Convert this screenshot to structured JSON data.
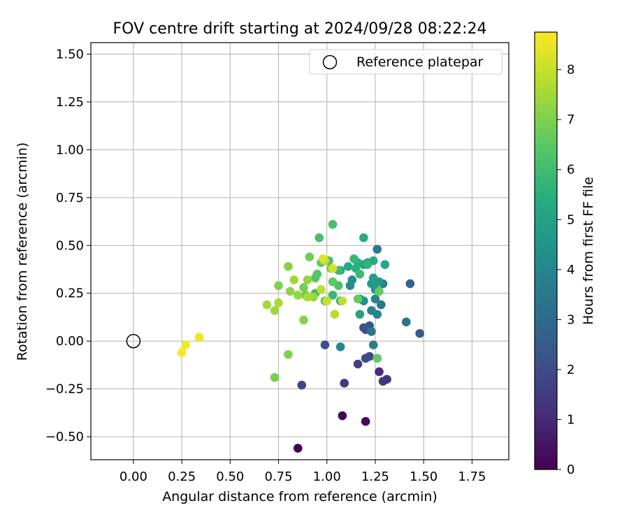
{
  "chart_data": {
    "type": "scatter",
    "title": "FOV centre drift starting at 2024/09/28 08:22:24",
    "xlabel": "Angular distance from reference (arcmin)",
    "ylabel": "Rotation from reference (arcmin)",
    "xlim": [
      -0.22,
      1.94
    ],
    "ylim": [
      -0.62,
      1.56
    ],
    "xticks": [
      "0.00",
      "0.25",
      "0.50",
      "0.75",
      "1.00",
      "1.25",
      "1.50",
      "1.75"
    ],
    "yticks": [
      "−0.50",
      "−0.25",
      "0.00",
      "0.25",
      "0.50",
      "0.75",
      "1.00",
      "1.25",
      "1.50"
    ],
    "grid": true,
    "legend": {
      "placement": "top-right",
      "entries": [
        "Reference platepar"
      ]
    },
    "reference_point": {
      "name": "Reference platepar",
      "x": 0.0,
      "y": 0.0
    },
    "colorbar": {
      "label": "Hours from first FF file",
      "colormap": "viridis",
      "range": [
        0,
        8.75
      ],
      "ticks": [
        "0",
        "1",
        "2",
        "3",
        "4",
        "5",
        "6",
        "7",
        "8"
      ]
    },
    "points": [
      {
        "x": 0.85,
        "y": -0.56,
        "h": 0.0
      },
      {
        "x": 1.08,
        "y": -0.39,
        "h": 0.1
      },
      {
        "x": 1.2,
        "y": -0.42,
        "h": 0.2
      },
      {
        "x": 1.27,
        "y": -0.16,
        "h": 1.1
      },
      {
        "x": 1.29,
        "y": -0.21,
        "h": 1.3
      },
      {
        "x": 1.31,
        "y": -0.2,
        "h": 1.4
      },
      {
        "x": 1.09,
        "y": -0.22,
        "h": 1.5
      },
      {
        "x": 1.16,
        "y": -0.12,
        "h": 1.7
      },
      {
        "x": 0.87,
        "y": -0.23,
        "h": 1.8
      },
      {
        "x": 1.22,
        "y": -0.08,
        "h": 1.9
      },
      {
        "x": 1.2,
        "y": -0.09,
        "h": 2.0
      },
      {
        "x": 0.99,
        "y": -0.02,
        "h": 2.1
      },
      {
        "x": 1.2,
        "y": 0.06,
        "h": 2.2
      },
      {
        "x": 1.19,
        "y": 0.07,
        "h": 2.3
      },
      {
        "x": 1.22,
        "y": 0.08,
        "h": 2.3
      },
      {
        "x": 1.48,
        "y": 0.04,
        "h": 2.6
      },
      {
        "x": 1.43,
        "y": 0.3,
        "h": 2.8
      },
      {
        "x": 1.41,
        "y": 0.1,
        "h": 3.3
      },
      {
        "x": 1.23,
        "y": 0.05,
        "h": 3.4
      },
      {
        "x": 1.28,
        "y": 0.19,
        "h": 3.4
      },
      {
        "x": 1.26,
        "y": 0.48,
        "h": 3.5
      },
      {
        "x": 1.24,
        "y": -0.02,
        "h": 3.7
      },
      {
        "x": 1.29,
        "y": 0.3,
        "h": 3.8
      },
      {
        "x": 1.23,
        "y": 0.16,
        "h": 3.9
      },
      {
        "x": 1.25,
        "y": 0.22,
        "h": 4.0
      },
      {
        "x": 1.26,
        "y": 0.14,
        "h": 4.0
      },
      {
        "x": 1.07,
        "y": -0.03,
        "h": 4.1
      },
      {
        "x": 1.12,
        "y": 0.29,
        "h": 4.2
      },
      {
        "x": 1.13,
        "y": 0.32,
        "h": 4.3
      },
      {
        "x": 1.19,
        "y": 0.21,
        "h": 4.4
      },
      {
        "x": 1.25,
        "y": 0.27,
        "h": 4.5
      },
      {
        "x": 1.26,
        "y": 0.31,
        "h": 4.5
      },
      {
        "x": 1.17,
        "y": 0.22,
        "h": 4.6
      },
      {
        "x": 1.23,
        "y": 0.3,
        "h": 4.7
      },
      {
        "x": 1.27,
        "y": 0.31,
        "h": 4.7
      },
      {
        "x": 1.24,
        "y": 0.33,
        "h": 4.8
      },
      {
        "x": 1.19,
        "y": 0.4,
        "h": 4.9
      },
      {
        "x": 1.07,
        "y": 0.37,
        "h": 5.0
      },
      {
        "x": 1.17,
        "y": 0.14,
        "h": 5.0
      },
      {
        "x": 1.21,
        "y": 0.41,
        "h": 5.1
      },
      {
        "x": 1.3,
        "y": 0.4,
        "h": 5.2
      },
      {
        "x": 1.24,
        "y": 0.42,
        "h": 5.3
      },
      {
        "x": 1.11,
        "y": 0.39,
        "h": 5.3
      },
      {
        "x": 1.19,
        "y": 0.54,
        "h": 5.4
      },
      {
        "x": 1.15,
        "y": 0.38,
        "h": 5.5
      },
      {
        "x": 1.16,
        "y": 0.41,
        "h": 5.5
      },
      {
        "x": 1.07,
        "y": 0.21,
        "h": 5.6
      },
      {
        "x": 1.21,
        "y": 0.4,
        "h": 5.7
      },
      {
        "x": 1.14,
        "y": 0.43,
        "h": 5.8
      },
      {
        "x": 1.03,
        "y": 0.24,
        "h": 5.8
      },
      {
        "x": 1.06,
        "y": 0.37,
        "h": 5.9
      },
      {
        "x": 1.17,
        "y": 0.35,
        "h": 5.9
      },
      {
        "x": 0.94,
        "y": 0.25,
        "h": 6.0
      },
      {
        "x": 1.03,
        "y": 0.61,
        "h": 6.1
      },
      {
        "x": 0.96,
        "y": 0.54,
        "h": 6.1
      },
      {
        "x": 1.06,
        "y": 0.29,
        "h": 6.2
      },
      {
        "x": 1.01,
        "y": 0.42,
        "h": 6.2
      },
      {
        "x": 0.99,
        "y": 0.21,
        "h": 6.3
      },
      {
        "x": 0.94,
        "y": 0.33,
        "h": 6.3
      },
      {
        "x": 0.95,
        "y": 0.35,
        "h": 6.4
      },
      {
        "x": 0.97,
        "y": 0.41,
        "h": 6.5
      },
      {
        "x": 1.03,
        "y": 0.31,
        "h": 6.5
      },
      {
        "x": 1.26,
        "y": -0.09,
        "h": 6.6
      },
      {
        "x": 1.27,
        "y": 0.26,
        "h": 6.6
      },
      {
        "x": 1.16,
        "y": 0.22,
        "h": 6.7
      },
      {
        "x": 0.89,
        "y": 0.24,
        "h": 6.7
      },
      {
        "x": 1.02,
        "y": 0.38,
        "h": 6.8
      },
      {
        "x": 0.91,
        "y": 0.44,
        "h": 6.8
      },
      {
        "x": 0.88,
        "y": 0.28,
        "h": 6.9
      },
      {
        "x": 0.73,
        "y": -0.19,
        "h": 6.9
      },
      {
        "x": 0.75,
        "y": 0.29,
        "h": 7.0
      },
      {
        "x": 0.8,
        "y": -0.07,
        "h": 7.0
      },
      {
        "x": 0.8,
        "y": 0.39,
        "h": 7.1
      },
      {
        "x": 0.88,
        "y": 0.11,
        "h": 7.1
      },
      {
        "x": 0.81,
        "y": 0.26,
        "h": 7.2
      },
      {
        "x": 0.85,
        "y": 0.24,
        "h": 7.3
      },
      {
        "x": 0.9,
        "y": 0.32,
        "h": 7.3
      },
      {
        "x": 0.93,
        "y": 0.23,
        "h": 7.4
      },
      {
        "x": 0.73,
        "y": 0.16,
        "h": 7.4
      },
      {
        "x": 0.69,
        "y": 0.19,
        "h": 7.5
      },
      {
        "x": 0.83,
        "y": 0.32,
        "h": 7.5
      },
      {
        "x": 0.9,
        "y": 0.23,
        "h": 7.6
      },
      {
        "x": 0.75,
        "y": 0.2,
        "h": 7.6
      },
      {
        "x": 0.99,
        "y": 0.42,
        "h": 7.8
      },
      {
        "x": 1.04,
        "y": 0.14,
        "h": 7.8
      },
      {
        "x": 0.97,
        "y": 0.27,
        "h": 7.9
      },
      {
        "x": 1.08,
        "y": 0.21,
        "h": 7.9
      },
      {
        "x": 1.0,
        "y": 0.21,
        "h": 8.0
      },
      {
        "x": 1.03,
        "y": 0.38,
        "h": 8.2
      },
      {
        "x": 0.98,
        "y": 0.43,
        "h": 8.3
      },
      {
        "x": 0.34,
        "y": 0.02,
        "h": 8.6
      },
      {
        "x": 0.27,
        "y": -0.02,
        "h": 8.65
      },
      {
        "x": 0.25,
        "y": -0.06,
        "h": 8.7
      }
    ]
  }
}
